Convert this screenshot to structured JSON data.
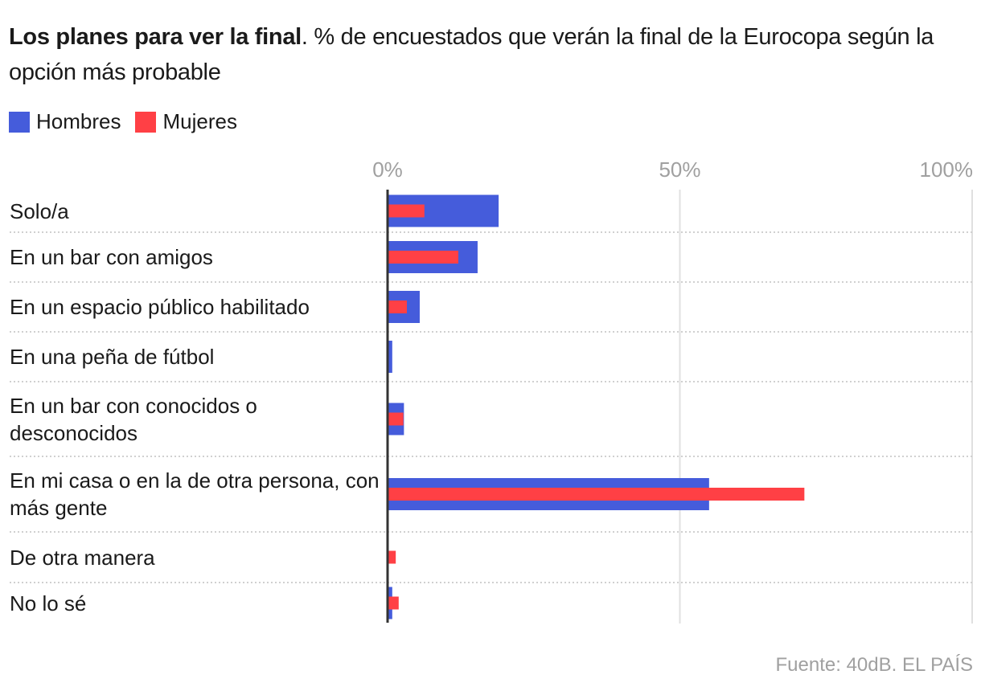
{
  "title": {
    "bold": "Los planes para ver la final",
    "rest": ". % de encuestados que verán la final de la Eurocopa según la opción más probable"
  },
  "colors": {
    "hombres": "#455CDB",
    "mujeres": "#FF4045",
    "axis": "#333333",
    "grid": "#e0e0e0",
    "tick_text": "#a0a0a0"
  },
  "source": "Fuente: 40dB. EL PAÍS",
  "chart_data": {
    "type": "bar",
    "orientation": "horizontal",
    "title": "Los planes para ver la final. % de encuestados que verán la final de la Eurocopa según la opción más probable",
    "xlabel": "",
    "ylabel": "",
    "xlim": [
      0,
      100
    ],
    "x_ticks": [
      0,
      50,
      100
    ],
    "x_tick_labels": [
      "0%",
      "50%",
      "100%"
    ],
    "grid": true,
    "legend_position": "top-left",
    "categories": [
      "Solo/a",
      "En un bar con amigos",
      "En un espacio público habilitado",
      "En una peña de fútbol",
      "En un bar con conocidos o desconocidos",
      "En mi casa o en la de otra persona, con más gente",
      "De otra manera",
      "No lo sé"
    ],
    "series": [
      {
        "name": "Hombres",
        "values": [
          19.0,
          15.4,
          5.5,
          0.8,
          2.8,
          55.0,
          0.0,
          0.8
        ]
      },
      {
        "name": "Mujeres",
        "values": [
          6.3,
          12.1,
          3.3,
          0.0,
          2.7,
          71.3,
          1.4,
          1.9
        ]
      }
    ]
  }
}
